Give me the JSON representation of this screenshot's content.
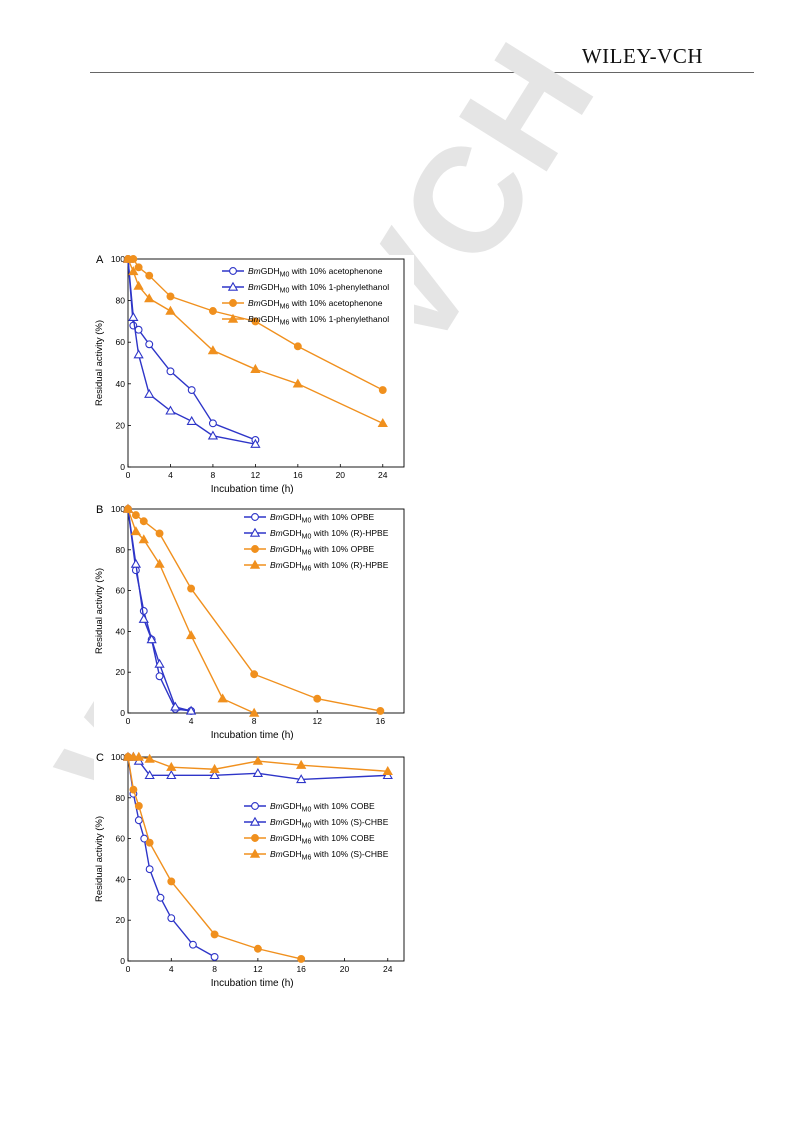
{
  "header": {
    "publisher": "WILEY-VCH"
  },
  "watermark": "WILEY-VCH",
  "colors": {
    "blue": "#2e35c8",
    "orange": "#f0901e"
  },
  "chart_data": [
    {
      "panel": "A",
      "type": "line",
      "xlabel": "Incubation time (h)",
      "ylabel": "Residual activity (%)",
      "xlim": [
        0,
        26
      ],
      "ylim": [
        0,
        100
      ],
      "xticks": [
        0,
        4,
        8,
        12,
        16,
        20,
        24
      ],
      "yticks": [
        0,
        20,
        40,
        60,
        80,
        100
      ],
      "legend_position": "top-right",
      "series": [
        {
          "name": "BmGDHM0 with 10% acetophenone",
          "legend_parts": [
            "Bm",
            "GDH",
            "M0",
            " with 10% acetophenone"
          ],
          "color": "#2e35c8",
          "marker": "circle-open",
          "x": [
            0,
            0.5,
            1,
            2,
            4,
            6,
            8,
            12
          ],
          "y": [
            100,
            68,
            66,
            59,
            46,
            37,
            21,
            13
          ]
        },
        {
          "name": "BmGDHM0 with 10% 1-phenylethanol",
          "legend_parts": [
            "Bm",
            "GDH",
            "M0",
            " with 10% 1-phenylethanol"
          ],
          "color": "#2e35c8",
          "marker": "triangle-open",
          "x": [
            0,
            0.5,
            1,
            2,
            4,
            6,
            8,
            12
          ],
          "y": [
            100,
            72,
            54,
            35,
            27,
            22,
            15,
            11
          ]
        },
        {
          "name": "BmGDHM6 with 10% acetophenone",
          "legend_parts": [
            "Bm",
            "GDH",
            "M6",
            " with 10% acetophenone"
          ],
          "color": "#f0901e",
          "marker": "circle-filled",
          "x": [
            0,
            0.5,
            1,
            2,
            4,
            8,
            12,
            16,
            24
          ],
          "y": [
            100,
            100,
            96,
            92,
            82,
            75,
            70,
            58,
            37
          ]
        },
        {
          "name": "BmGDHM6 with 10% 1-phenylethanol",
          "legend_parts": [
            "Bm",
            "GDH",
            "M6",
            " with 10% 1-phenylethanol"
          ],
          "color": "#f0901e",
          "marker": "triangle-filled",
          "x": [
            0,
            0.5,
            1,
            2,
            4,
            8,
            12,
            16,
            24
          ],
          "y": [
            100,
            94,
            87,
            81,
            75,
            56,
            47,
            40,
            21
          ]
        }
      ]
    },
    {
      "panel": "B",
      "type": "line",
      "xlabel": "Incubation time (h)",
      "ylabel": "Residual activity (%)",
      "xlim": [
        0,
        17.5
      ],
      "ylim": [
        0,
        100
      ],
      "xticks": [
        0,
        4,
        8,
        12,
        16
      ],
      "yticks": [
        0,
        20,
        40,
        60,
        80,
        100
      ],
      "legend_position": "top-right",
      "series": [
        {
          "name": "BmGDHM0 with 10% OPBE",
          "legend_parts": [
            "Bm",
            "GDH",
            "M0",
            " with 10% OPBE"
          ],
          "color": "#2e35c8",
          "marker": "circle-open",
          "x": [
            0,
            0.5,
            1,
            1.5,
            2,
            3,
            4
          ],
          "y": [
            100,
            70,
            50,
            36,
            18,
            2,
            1
          ]
        },
        {
          "name": "BmGDHM0 with 10% (R)-HPBE",
          "legend_parts": [
            "Bm",
            "GDH",
            "M0",
            " with 10% (R)-HPBE"
          ],
          "color": "#2e35c8",
          "marker": "triangle-open",
          "x": [
            0,
            0.5,
            1,
            1.5,
            2,
            3,
            4
          ],
          "y": [
            100,
            73,
            46,
            36,
            24,
            3,
            1
          ]
        },
        {
          "name": "BmGDHM6 with 10% OPBE",
          "legend_parts": [
            "Bm",
            "GDH",
            "M6",
            " with 10% OPBE"
          ],
          "color": "#f0901e",
          "marker": "circle-filled",
          "x": [
            0,
            0.5,
            1,
            2,
            4,
            8,
            12,
            16
          ],
          "y": [
            100,
            97,
            94,
            88,
            61,
            19,
            7,
            1
          ]
        },
        {
          "name": "BmGDHM6 with 10% (R)-HPBE",
          "legend_parts": [
            "Bm",
            "GDH",
            "M6",
            " with 10% (R)-HPBE"
          ],
          "color": "#f0901e",
          "marker": "triangle-filled",
          "x": [
            0,
            0.5,
            1,
            2,
            4,
            6,
            8
          ],
          "y": [
            100,
            89,
            85,
            73,
            38,
            7,
            0
          ]
        }
      ]
    },
    {
      "panel": "C",
      "type": "line",
      "xlabel": "Incubation time (h)",
      "ylabel": "Residual activity (%)",
      "xlim": [
        0,
        25.5
      ],
      "ylim": [
        0,
        100
      ],
      "xticks": [
        0,
        4,
        8,
        12,
        16,
        20,
        24
      ],
      "yticks": [
        0,
        20,
        40,
        60,
        80,
        100
      ],
      "legend_position": "center-right",
      "series": [
        {
          "name": "BmGDHM0 with 10% COBE",
          "legend_parts": [
            "Bm",
            "GDH",
            "M0",
            " with 10% COBE"
          ],
          "color": "#2e35c8",
          "marker": "circle-open",
          "x": [
            0,
            0.5,
            1,
            1.5,
            2,
            3,
            4,
            6,
            8
          ],
          "y": [
            100,
            82,
            69,
            60,
            45,
            31,
            21,
            8,
            2
          ]
        },
        {
          "name": "BmGDHM0 with 10% (S)-CHBE",
          "legend_parts": [
            "Bm",
            "GDH",
            "M0",
            " with 10% (S)-CHBE"
          ],
          "color": "#2e35c8",
          "marker": "triangle-open",
          "x": [
            0,
            0.5,
            1,
            2,
            4,
            8,
            12,
            16,
            24
          ],
          "y": [
            100,
            100,
            98,
            91,
            91,
            91,
            92,
            89,
            91
          ]
        },
        {
          "name": "BmGDHM6 with 10% COBE",
          "legend_parts": [
            "Bm",
            "GDH",
            "M6",
            " with 10% COBE"
          ],
          "color": "#f0901e",
          "marker": "circle-filled",
          "x": [
            0,
            0.5,
            1,
            2,
            4,
            8,
            12,
            16
          ],
          "y": [
            100,
            84,
            76,
            58,
            39,
            13,
            6,
            1
          ]
        },
        {
          "name": "BmGDHM6 with 10% (S)-CHBE",
          "legend_parts": [
            "Bm",
            "GDH",
            "M6",
            " with 10% (S)-CHBE"
          ],
          "color": "#f0901e",
          "marker": "triangle-filled",
          "x": [
            0,
            0.5,
            1,
            2,
            4,
            8,
            12,
            16,
            24
          ],
          "y": [
            100,
            100,
            100,
            99,
            95,
            94,
            98,
            96,
            93
          ]
        }
      ]
    }
  ]
}
